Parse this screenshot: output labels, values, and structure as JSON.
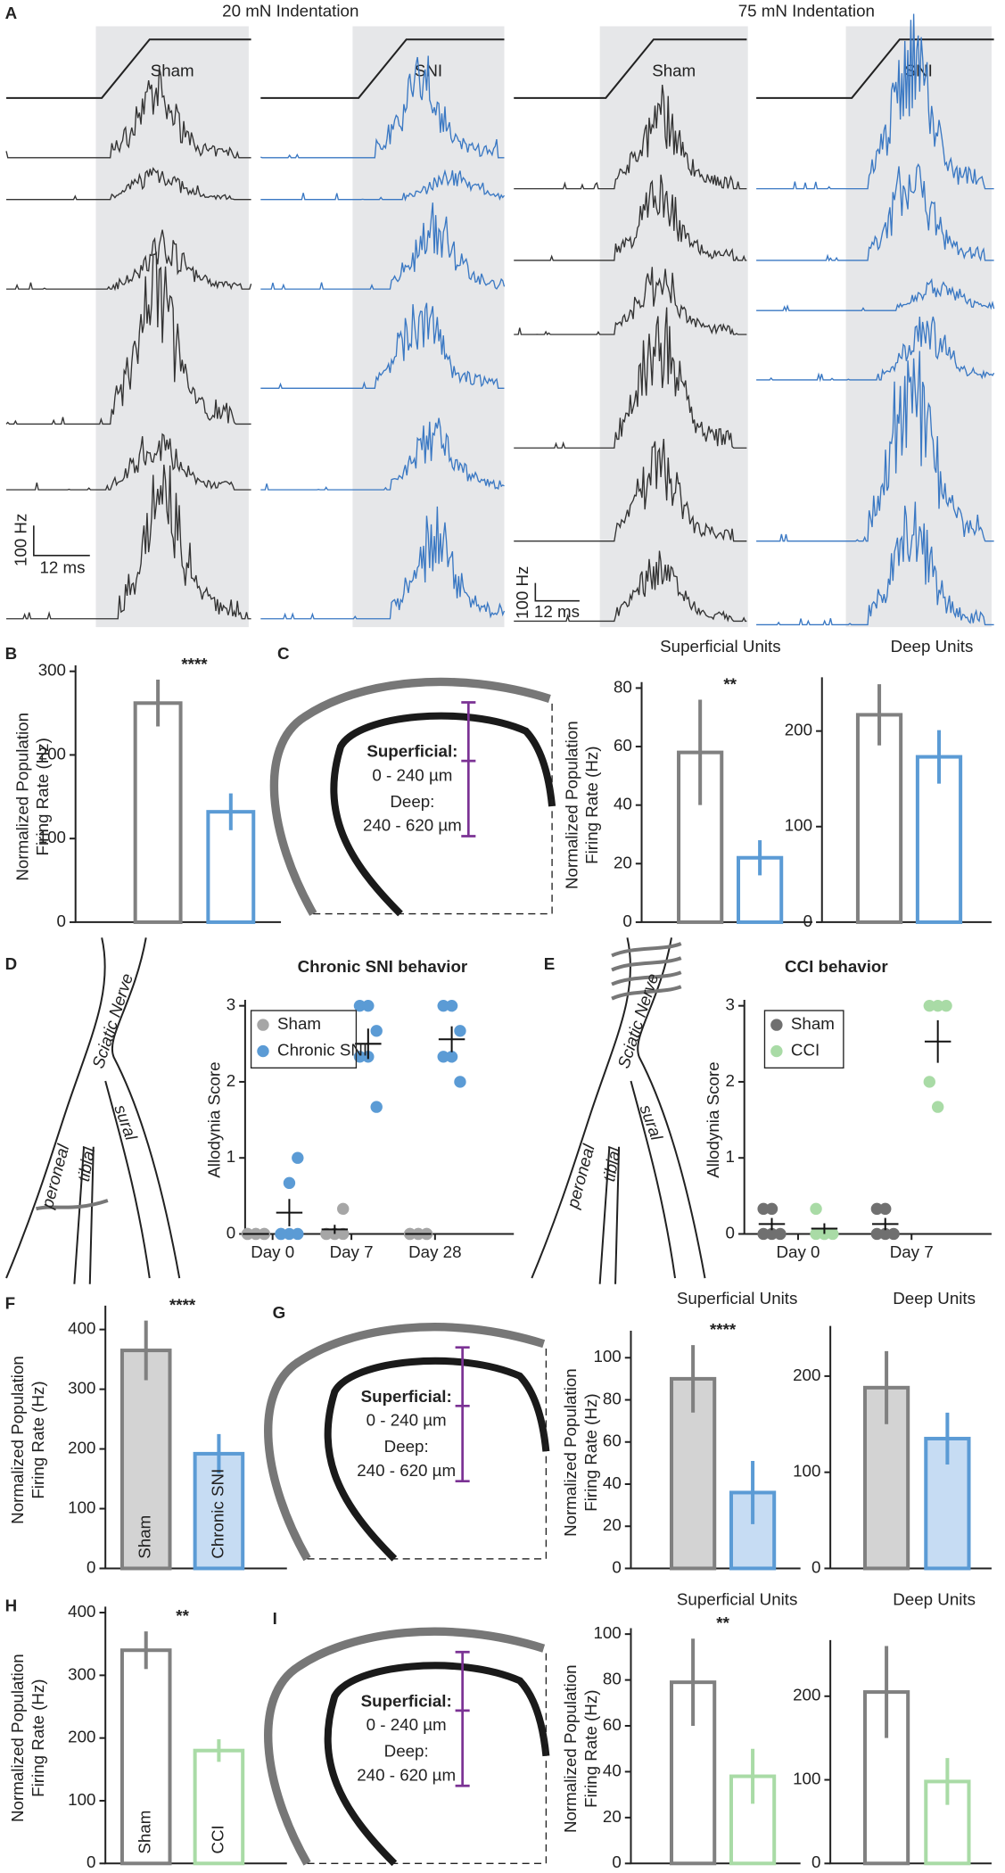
{
  "figure": {
    "panels": [
      "A",
      "B",
      "C",
      "D",
      "E",
      "F",
      "G",
      "H",
      "I"
    ],
    "headers": [
      "20 mN Indentation",
      "75 mN Indentation"
    ],
    "trace_labels": [
      "Sham",
      "SNI",
      "Sham",
      "SNI"
    ],
    "scale_bars": [
      "100 Hz",
      "12 ms"
    ],
    "diagram": {
      "superficial": "Superficial:",
      "superficial_range": "0 - 240 µm",
      "deep": "Deep:",
      "deep_range": "240 - 620 µm"
    },
    "nerves": {
      "sciatic": "Sciatic Nerve",
      "peroneal": "peroneal",
      "tibial": "tibial",
      "sural": "sural"
    }
  },
  "chart_data": [
    {
      "type": "bar",
      "ylabel": [
        "Normalized Population",
        "Firing Rate (Hz)"
      ],
      "categories": [
        null,
        null
      ],
      "values": [
        262,
        132
      ],
      "errors": [
        28,
        22
      ],
      "ylim": [
        0,
        300
      ],
      "yticks": [
        0,
        100,
        200,
        300
      ],
      "annotation": "****",
      "colors": [
        "#808080",
        "#5b9bd5"
      ],
      "fills": [
        "#ffffff",
        "#ffffff"
      ]
    },
    {
      "type": "bar",
      "title": "Superficial Units",
      "ylabel": [
        "Normalized Population",
        "Firing Rate (Hz)"
      ],
      "categories": [
        null,
        null
      ],
      "values": [
        58,
        22
      ],
      "errors": [
        18,
        6
      ],
      "ylim": [
        0,
        80
      ],
      "yticks": [
        0,
        20,
        40,
        60,
        80
      ],
      "annotation": "**",
      "colors": [
        "#808080",
        "#5b9bd5"
      ],
      "fills": [
        "#ffffff",
        "#ffffff"
      ]
    },
    {
      "type": "bar",
      "title": "Deep Units",
      "categories": [
        null,
        null
      ],
      "values": [
        217,
        173
      ],
      "errors": [
        32,
        28
      ],
      "ylim": [
        0,
        250
      ],
      "yticks": [
        0,
        100,
        200
      ],
      "colors": [
        "#808080",
        "#5b9bd5"
      ],
      "fills": [
        "#ffffff",
        "#ffffff"
      ]
    },
    {
      "type": "dot",
      "title": "Chronic SNI behavior",
      "ylabel": "Allodynia Score",
      "categories": [
        "Day 0",
        "Day 7",
        "Day 28"
      ],
      "ylim": [
        0,
        3
      ],
      "yticks": [
        0,
        1,
        2,
        3
      ],
      "series": [
        {
          "name": "Sham",
          "color": "#a6a6a6",
          "values": [
            [
              0,
              0,
              0,
              0,
              0,
              0
            ],
            [
              0,
              0,
              0,
              0,
              0,
              0.33
            ],
            [
              0,
              0,
              0,
              0,
              0,
              0
            ]
          ],
          "means": [
            0,
            0.06,
            0
          ],
          "sems": [
            0,
            0.06,
            0
          ]
        },
        {
          "name": "Chronic SNI",
          "color": "#5b9bd5",
          "values": [
            [
              0,
              0,
              0,
              0,
              0.67,
              1
            ],
            [
              3,
              3,
              2.67,
              2.33,
              2.33,
              1.67
            ],
            [
              3,
              3,
              2.67,
              2.33,
              2.33,
              2
            ]
          ],
          "means": [
            0.28,
            2.5,
            2.56
          ],
          "sems": [
            0.18,
            0.2,
            0.17
          ]
        }
      ]
    },
    {
      "type": "dot",
      "title": "CCI behavior",
      "ylabel": "Allodynia Score",
      "categories": [
        "Day 0",
        "Day 7"
      ],
      "ylim": [
        0,
        3
      ],
      "yticks": [
        0,
        1,
        2,
        3
      ],
      "series": [
        {
          "name": "Sham",
          "color": "#707070",
          "values": [
            [
              0.33,
              0.33,
              0,
              0,
              0
            ],
            [
              0.33,
              0.33,
              0,
              0,
              0
            ]
          ],
          "means": [
            0.13,
            0.13
          ],
          "sems": [
            0.08,
            0.08
          ]
        },
        {
          "name": "CCI",
          "color": "#a9dba6",
          "values": [
            [
              0.33,
              0,
              0,
              0,
              0
            ],
            [
              3,
              3,
              3,
              2,
              1.67
            ]
          ],
          "means": [
            0.07,
            2.53
          ],
          "sems": [
            0.07,
            0.28
          ]
        }
      ]
    },
    {
      "type": "bar",
      "ylabel": [
        "Normalized Population",
        "Firing Rate (Hz)"
      ],
      "categories": [
        "Sham",
        "Chronic SNI"
      ],
      "values": [
        365,
        192
      ],
      "errors": [
        50,
        33
      ],
      "ylim": [
        0,
        430
      ],
      "yticks": [
        0,
        100,
        200,
        300,
        400
      ],
      "annotation": "****",
      "colors": [
        "#808080",
        "#5b9bd5"
      ],
      "fills": [
        "#d3d3d3",
        "#c6dcf3"
      ]
    },
    {
      "type": "bar",
      "title": "Superficial Units",
      "ylabel": [
        "Normalized Population",
        "Firing Rate (Hz)"
      ],
      "categories": [
        null,
        null
      ],
      "values": [
        90,
        36
      ],
      "errors": [
        16,
        15
      ],
      "ylim": [
        0,
        110
      ],
      "yticks": [
        0,
        20,
        40,
        60,
        80,
        100
      ],
      "annotation": "****",
      "colors": [
        "#808080",
        "#5b9bd5"
      ],
      "fills": [
        "#d3d3d3",
        "#c6dcf3"
      ]
    },
    {
      "type": "bar",
      "title": "Deep Units",
      "categories": [
        null,
        null
      ],
      "values": [
        188,
        135
      ],
      "errors": [
        38,
        27
      ],
      "ylim": [
        0,
        246
      ],
      "yticks": [
        0,
        100,
        200
      ],
      "colors": [
        "#808080",
        "#5b9bd5"
      ],
      "fills": [
        "#d3d3d3",
        "#c6dcf3"
      ]
    },
    {
      "type": "bar",
      "ylabel": [
        "Normalized Population",
        "Firing Rate (Hz)"
      ],
      "categories": [
        "Sham",
        "CCI"
      ],
      "values": [
        340,
        180
      ],
      "errors": [
        30,
        18
      ],
      "ylim": [
        0,
        400
      ],
      "yticks": [
        0,
        100,
        200,
        300,
        400
      ],
      "annotation": "**",
      "colors": [
        "#808080",
        "#a9dba6"
      ],
      "fills": [
        "#ffffff",
        "#ffffff"
      ]
    },
    {
      "type": "bar",
      "title": "Superficial Units",
      "ylabel": [
        "Normalized Population",
        "Firing Rate (Hz)"
      ],
      "categories": [
        null,
        null
      ],
      "values": [
        79,
        38
      ],
      "errors": [
        19,
        12
      ],
      "ylim": [
        0,
        100
      ],
      "yticks": [
        0,
        20,
        40,
        60,
        80,
        100
      ],
      "annotation": "**",
      "colors": [
        "#808080",
        "#a9dba6"
      ],
      "fills": [
        "#ffffff",
        "#ffffff"
      ]
    },
    {
      "type": "bar",
      "title": "Deep Units",
      "categories": [
        null,
        null
      ],
      "values": [
        205,
        98
      ],
      "errors": [
        55,
        28
      ],
      "ylim": [
        0,
        260
      ],
      "yticks": [
        0,
        100,
        200
      ],
      "colors": [
        "#808080",
        "#a9dba6"
      ],
      "fills": [
        "#ffffff",
        "#ffffff"
      ]
    }
  ]
}
